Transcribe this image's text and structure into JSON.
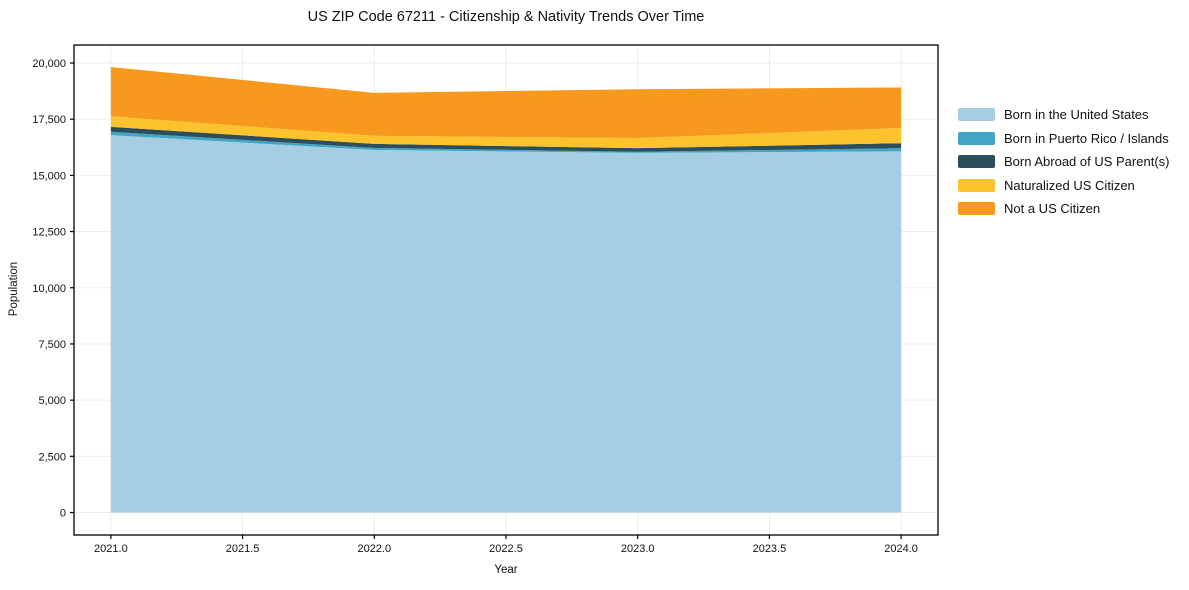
{
  "chart_data": {
    "type": "area",
    "stacked": true,
    "title": "US ZIP Code 67211 - Citizenship & Nativity Trends Over Time",
    "xlabel": "Year",
    "ylabel": "Population",
    "x": [
      2021,
      2022,
      2023,
      2024
    ],
    "series": [
      {
        "name": "Born in the United States",
        "color": "#a6cee3",
        "values": [
          16790,
          16130,
          16000,
          16070
        ]
      },
      {
        "name": "Born in Puerto Rico / Islands",
        "color": "#41a6c4",
        "values": [
          150,
          90,
          50,
          140
        ]
      },
      {
        "name": "Born Abroad of US Parent(s)",
        "color": "#2b4d5c",
        "values": [
          220,
          180,
          160,
          220
        ]
      },
      {
        "name": "Naturalized US Citizen",
        "color": "#fcc32d",
        "values": [
          470,
          360,
          450,
          680
        ]
      },
      {
        "name": "Not a US Citizen",
        "color": "#f7981f",
        "values": [
          2190,
          1910,
          2170,
          1800
        ]
      }
    ],
    "x_tick_values": [
      2021.0,
      2021.5,
      2022.0,
      2022.5,
      2023.0,
      2023.5,
      2024.0
    ],
    "x_tick_labels": [
      "2021.0",
      "2021.5",
      "2022.0",
      "2022.5",
      "2023.0",
      "2023.5",
      "2024.0"
    ],
    "y_tick_values": [
      0,
      2500,
      5000,
      7500,
      10000,
      12500,
      15000,
      17500,
      20000
    ],
    "y_tick_labels": [
      "0",
      "2,500",
      "5,000",
      "7,500",
      "10,000",
      "12,500",
      "15,000",
      "17,500",
      "20,000"
    ],
    "xlim": [
      2020.86,
      2024.14
    ],
    "ylim": [
      -1000,
      20800
    ],
    "grid": true,
    "grid_color": "#ebebeb",
    "axis_color": "#000000",
    "legend_position": "right"
  }
}
